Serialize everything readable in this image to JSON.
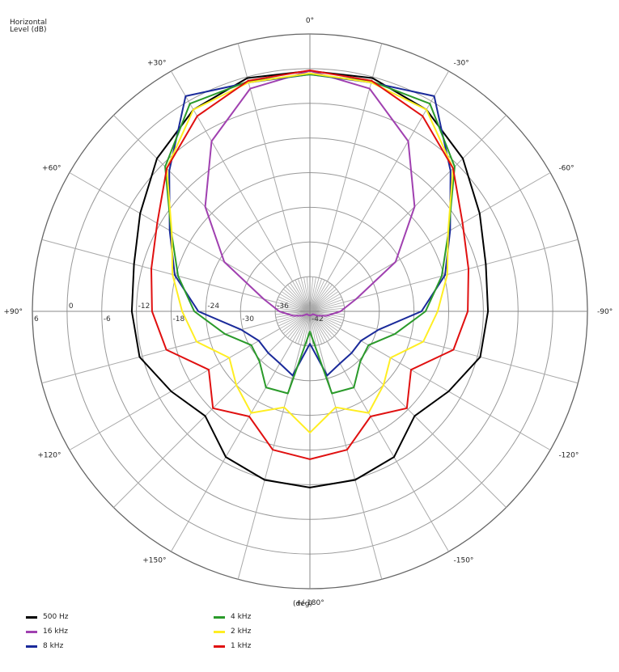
{
  "chart_data": {
    "type": "polar-line",
    "title": "",
    "ylabel_lines": [
      "Horizontal",
      "Level  (dB)"
    ],
    "xlabel": "(deg)",
    "radial_axis": {
      "min_db": -42,
      "max_db": 6,
      "ticks": [
        "6",
        "0",
        "-6",
        "-12",
        "-18",
        "-24",
        "-30",
        "-36",
        "-42"
      ],
      "tick_values": [
        6,
        0,
        -6,
        -12,
        -18,
        -24,
        -30,
        -36,
        -42
      ]
    },
    "angular_axis": {
      "zero_at": "top",
      "direction": "counterclockwise-positive",
      "labels": [
        {
          "angle": 0,
          "text": "0°"
        },
        {
          "angle": 30,
          "text": "+30°"
        },
        {
          "angle": -30,
          "text": "-30°"
        },
        {
          "angle": 60,
          "text": "+60°"
        },
        {
          "angle": -60,
          "text": "-60°"
        },
        {
          "angle": 90,
          "text": "+90°"
        },
        {
          "angle": -90,
          "text": "-90°"
        },
        {
          "angle": 120,
          "text": "+120°"
        },
        {
          "angle": -120,
          "text": "-120°"
        },
        {
          "angle": 150,
          "text": "+150°"
        },
        {
          "angle": -150,
          "text": "-150°"
        },
        {
          "angle": 180,
          "text": "+/-180°"
        }
      ],
      "spoke_step_deg": 15
    },
    "grid": true,
    "legend_position": "bottom",
    "angles_deg": [
      0,
      15,
      30,
      45,
      60,
      75,
      90,
      105,
      120,
      135,
      150,
      165,
      180
    ],
    "series": [
      {
        "name": "500 Hz",
        "color": "#000000",
        "values_db": [
          -0.4,
          -0.2,
          -1.7,
          -4.6,
          -8.1,
          -10.5,
          -11.2,
          -11.5,
          -14.3,
          -16.4,
          -12.9,
          -11.8,
          -11.5
        ]
      },
      {
        "name": "16 kHz",
        "color": "#a040b0",
        "values_db": [
          -0.4,
          -2.1,
          -8.0,
          -16.4,
          -24.9,
          -33.7,
          -36.7,
          -39.0,
          -40.5,
          -41.3,
          -41.3,
          -41.3,
          -41.3
        ]
      },
      {
        "name": "8 kHz",
        "color": "#1a2a9a",
        "values_db": [
          -1.0,
          -1.0,
          1.0,
          -7.6,
          -14.0,
          -17.8,
          -22.7,
          -29.7,
          -31.8,
          -31.8,
          -31.6,
          -30.5,
          -36.4
        ]
      },
      {
        "name": "4 kHz",
        "color": "#2a9a2a",
        "values_db": [
          -1.0,
          -0.8,
          -0.5,
          -6.6,
          -14.3,
          -18.4,
          -22.0,
          -26.8,
          -30.3,
          -29.7,
          -26.8,
          -27.3,
          -38.5
        ]
      },
      {
        "name": "2 kHz",
        "color": "#ffee22",
        "values_db": [
          -0.8,
          -1.0,
          -1.7,
          -7.0,
          -14.4,
          -17.4,
          -19.9,
          -21.7,
          -25.9,
          -24.0,
          -21.7,
          -24.8,
          -21.0
        ]
      },
      {
        "name": "1 kHz",
        "color": "#e01010",
        "values_db": [
          -0.3,
          -0.7,
          -3.0,
          -7.0,
          -11.5,
          -13.6,
          -14.7,
          -16.3,
          -21.8,
          -18.3,
          -21.0,
          -17.2,
          -16.4
        ]
      }
    ]
  },
  "legend": {
    "left": [
      {
        "label": "500 Hz",
        "color": "#000000"
      },
      {
        "label": "16 kHz",
        "color": "#a040b0"
      },
      {
        "label": "8 kHz",
        "color": "#1a2a9a"
      }
    ],
    "right": [
      {
        "label": "4 kHz",
        "color": "#2a9a2a"
      },
      {
        "label": "2 kHz",
        "color": "#ffee22"
      },
      {
        "label": "1 kHz",
        "color": "#e01010"
      }
    ]
  }
}
